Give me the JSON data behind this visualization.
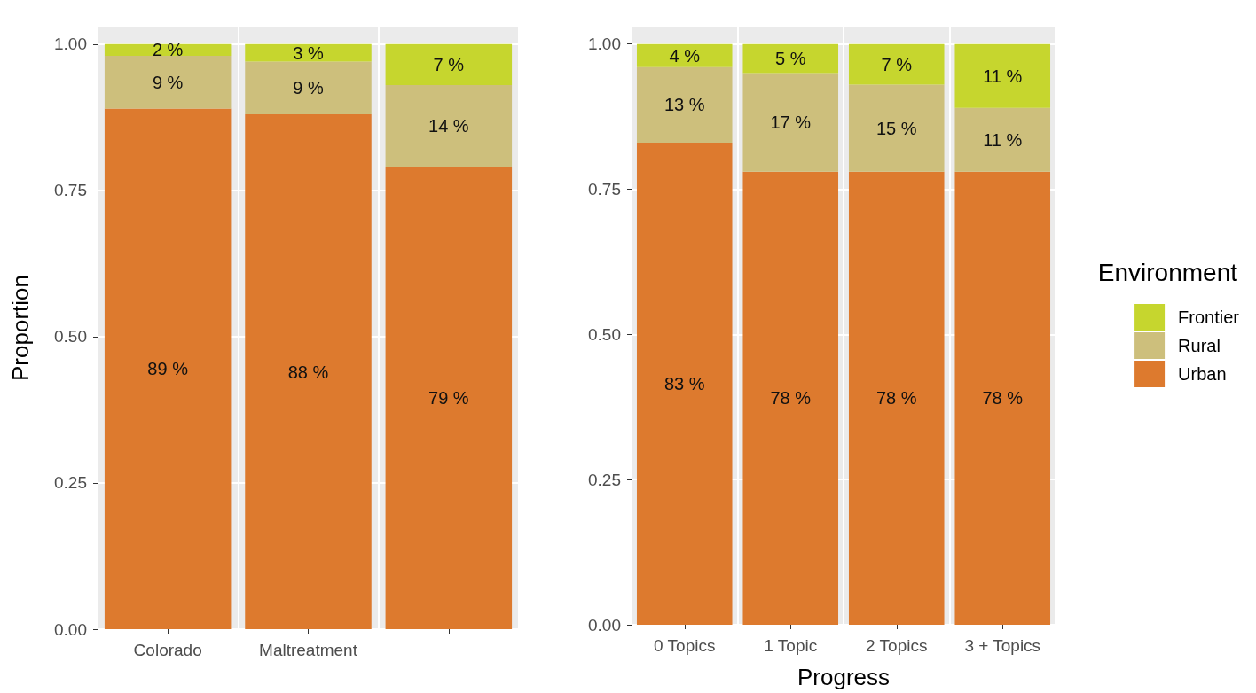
{
  "chart_data": [
    {
      "type": "bar",
      "stacked": true,
      "ylabel": "Proportion",
      "categories": [
        "Colorado",
        "Maltreatment",
        null
      ],
      "ylim": [
        0,
        1.03
      ],
      "yticks": [
        {
          "value": 0,
          "label": "0.00"
        },
        {
          "value": 0.25,
          "label": "0.25"
        },
        {
          "value": 0.5,
          "label": "0.50"
        },
        {
          "value": 0.75,
          "label": "0.75"
        },
        {
          "value": 1,
          "label": "1.00"
        }
      ],
      "grid": true,
      "legend": false,
      "series": [
        {
          "color": "#dd7a2e",
          "values": [
            0.89,
            0.88,
            0.79
          ],
          "value_labels": [
            "89 %",
            "88 %",
            "79 %"
          ]
        },
        {
          "color": "#cdbf7c",
          "values": [
            0.09,
            0.09,
            0.14
          ],
          "value_labels": [
            "9 %",
            "9 %",
            "14 %"
          ]
        },
        {
          "color": "#c6d62e",
          "values": [
            0.02,
            0.03,
            0.07
          ],
          "value_labels": [
            "2 %",
            "3 %",
            "7 %"
          ]
        }
      ]
    },
    {
      "type": "bar",
      "stacked": true,
      "xlabel": "Progress",
      "legend_title": "Environment",
      "categories": [
        "0 Topics",
        "1 Topic",
        "2 Topics",
        "3 + Topics"
      ],
      "ylim": [
        0,
        1.03
      ],
      "yticks": [
        {
          "value": 0,
          "label": "0.00"
        },
        {
          "value": 0.25,
          "label": "0.25"
        },
        {
          "value": 0.5,
          "label": "0.50"
        },
        {
          "value": 0.75,
          "label": "0.75"
        },
        {
          "value": 1,
          "label": "1.00"
        }
      ],
      "grid": true,
      "legend": "right",
      "series": [
        {
          "name": "Urban",
          "color": "#dd7a2e",
          "values": [
            0.83,
            0.78,
            0.78,
            0.78
          ],
          "value_labels": [
            "83 %",
            "78 %",
            "78 %",
            "78 %"
          ]
        },
        {
          "name": "Rural",
          "color": "#cdbf7c",
          "values": [
            0.13,
            0.17,
            0.15,
            0.11
          ],
          "value_labels": [
            "13 %",
            "17 %",
            "15 %",
            "11 %"
          ]
        },
        {
          "name": "Frontier",
          "color": "#c6d62e",
          "values": [
            0.04,
            0.05,
            0.07,
            0.11
          ],
          "value_labels": [
            "4 %",
            "5 %",
            "7 %",
            "11 %"
          ]
        }
      ]
    }
  ]
}
